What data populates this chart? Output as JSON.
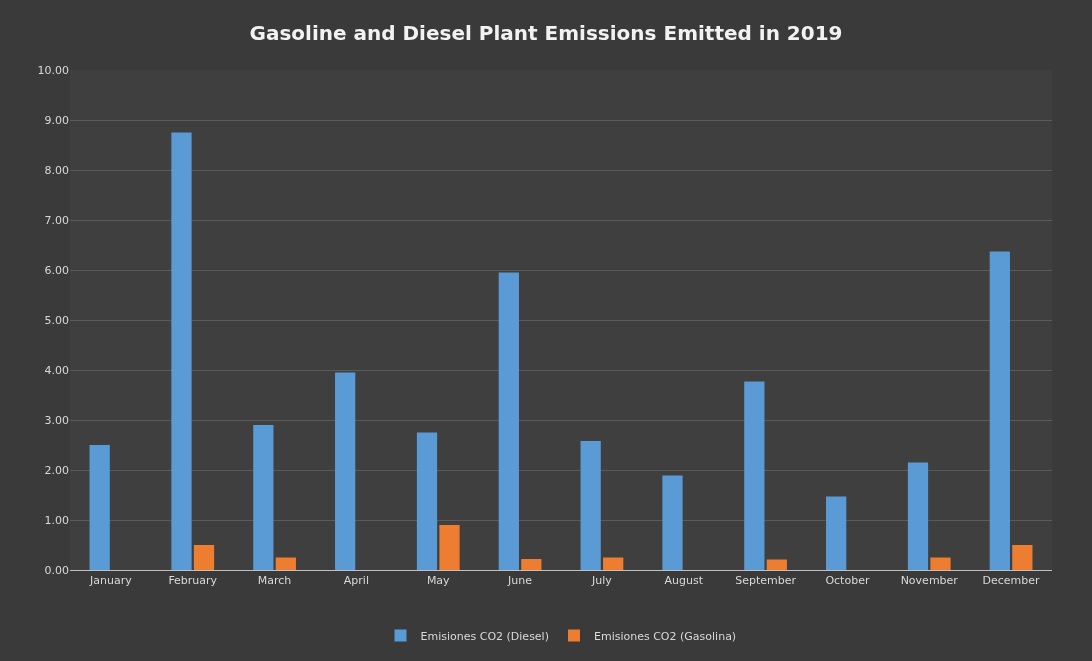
{
  "chart_data": {
    "type": "bar",
    "title": "Gasoline and Diesel Plant Emissions Emitted in 2019",
    "categories": [
      "January",
      "February",
      "March",
      "April",
      "May",
      "June",
      "July",
      "August",
      "September",
      "October",
      "November",
      "December"
    ],
    "series": [
      {
        "name": "Emisiones CO2 (Diesel)",
        "color": "#5b9bd5",
        "values": [
          2.5,
          8.75,
          2.9,
          3.95,
          2.75,
          5.95,
          2.58,
          1.89,
          3.77,
          1.47,
          2.15,
          6.37
        ]
      },
      {
        "name": "Emisiones CO2 (Gasolina)",
        "color": "#ed7d31",
        "values": [
          0,
          0.5,
          0.25,
          0,
          0.9,
          0.22,
          0.25,
          0,
          0.21,
          0,
          0.25,
          0.5
        ]
      }
    ],
    "ylim": [
      0,
      10
    ],
    "yticks": [
      {
        "value": 0,
        "label": "0.00"
      },
      {
        "value": 1,
        "label": "1.00"
      },
      {
        "value": 2,
        "label": "2.00"
      },
      {
        "value": 3,
        "label": "3.00"
      },
      {
        "value": 4,
        "label": "4.00"
      },
      {
        "value": 5,
        "label": "5.00"
      },
      {
        "value": 6,
        "label": "6.00"
      },
      {
        "value": 7,
        "label": "7.00"
      },
      {
        "value": 8,
        "label": "8.00"
      },
      {
        "value": 9,
        "label": "9.00"
      },
      {
        "value": 10,
        "label": "10.00"
      }
    ],
    "grid": "y",
    "legend": "bottom"
  }
}
